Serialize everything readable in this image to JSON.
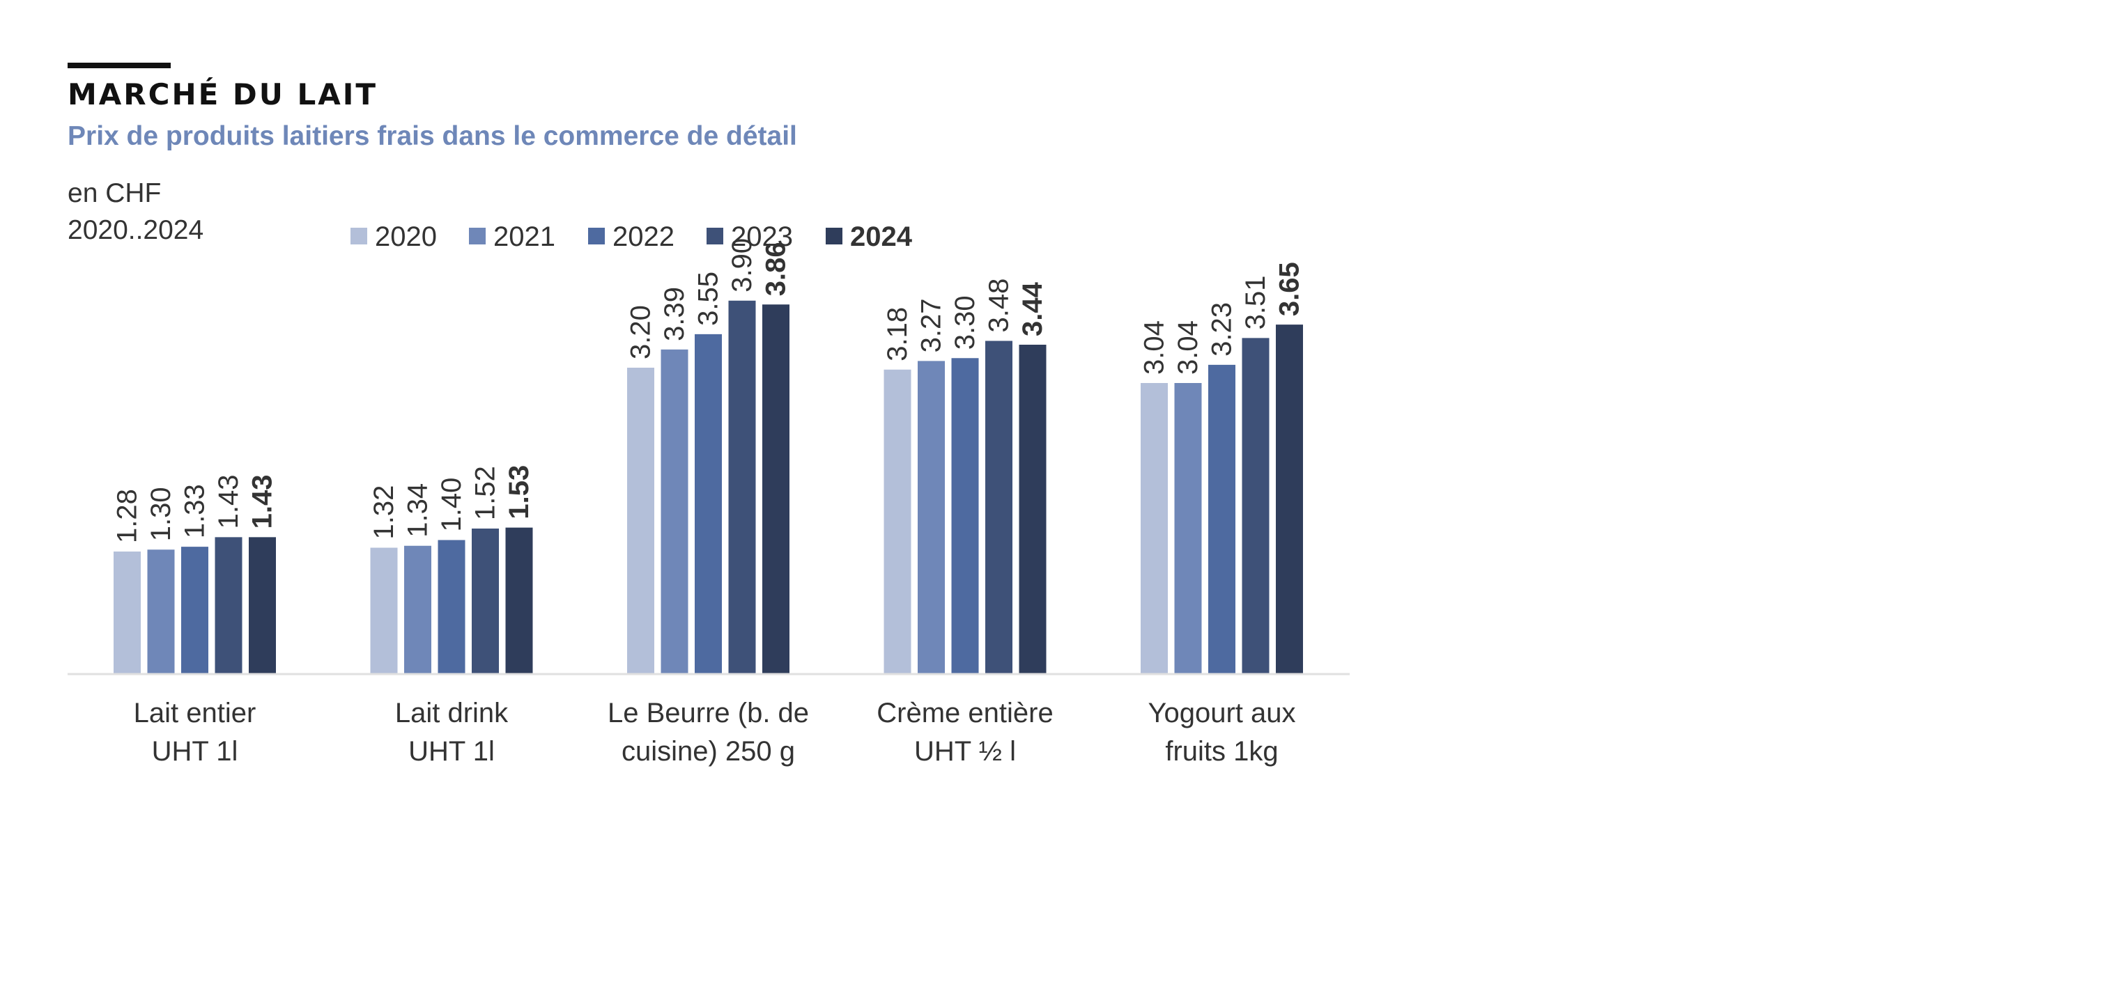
{
  "header": {
    "title": "MARCHÉ DU LAIT",
    "subtitle": "Prix de produits laitiers frais dans le commerce de détail",
    "unit": "en CHF",
    "period": "2020..2024"
  },
  "colors": {
    "title": "#111111",
    "subtitle": "#6e87b8",
    "text": "#333333",
    "axis": "#e0e0e0"
  },
  "chart_data": {
    "type": "bar",
    "title": "MARCHÉ DU LAIT",
    "subtitle": "Prix de produits laitiers frais dans le commerce de détail",
    "ylabel": "en CHF",
    "ylim": [
      0,
      4.6
    ],
    "grid": false,
    "legend_position": "top",
    "categories": [
      [
        "Lait entier",
        "UHT 1l"
      ],
      [
        "Lait drink",
        "UHT 1l"
      ],
      [
        "Le Beurre (b. de",
        "cuisine) 250 g"
      ],
      [
        "Crème entière",
        "UHT ½ l"
      ],
      [
        "Yogourt aux",
        "fruits 1kg"
      ]
    ],
    "series": [
      {
        "name": "2020",
        "color": "#b3bfd9",
        "bold": false,
        "values": [
          1.28,
          1.32,
          3.2,
          3.18,
          3.04
        ]
      },
      {
        "name": "2021",
        "color": "#6f87b8",
        "bold": false,
        "values": [
          1.3,
          1.34,
          3.39,
          3.27,
          3.04
        ]
      },
      {
        "name": "2022",
        "color": "#4e6aa0",
        "bold": false,
        "values": [
          1.33,
          1.4,
          3.55,
          3.3,
          3.23
        ]
      },
      {
        "name": "2023",
        "color": "#3e5178",
        "bold": false,
        "values": [
          1.43,
          1.52,
          3.9,
          3.48,
          3.51
        ]
      },
      {
        "name": "2024",
        "color": "#2f3d5b",
        "bold": true,
        "values": [
          1.43,
          1.53,
          3.86,
          3.44,
          3.65
        ]
      }
    ]
  }
}
